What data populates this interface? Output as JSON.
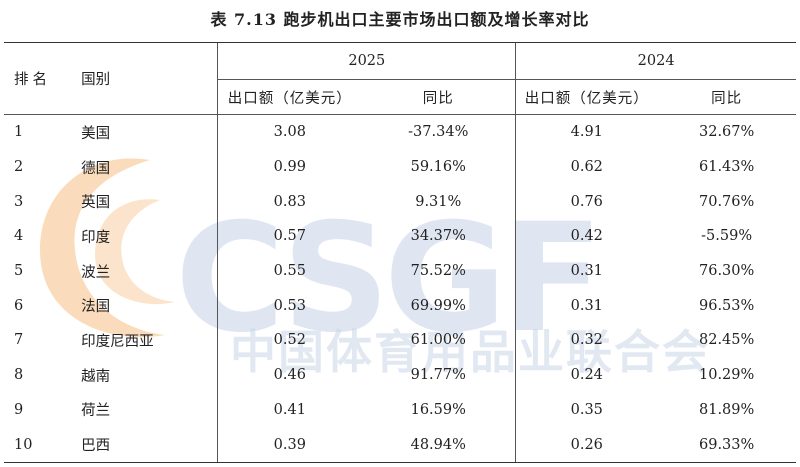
{
  "title": "表 7.13 跑步机出口主要市场出口额及增长率对比",
  "watermark": {
    "logo_text": "CSGF",
    "org_text": "中国体育用品业联合会"
  },
  "header": {
    "rank": "排名",
    "country": "国别",
    "year_a": "2025",
    "year_b": "2024",
    "amount": "出口额（亿美元）",
    "yoy": "同比"
  },
  "rows": [
    {
      "rank": "1",
      "country": "美国",
      "amt_2025": "3.08",
      "yoy_2025": "-37.34%",
      "amt_2024": "4.91",
      "yoy_2024": "32.67%"
    },
    {
      "rank": "2",
      "country": "德国",
      "amt_2025": "0.99",
      "yoy_2025": "59.16%",
      "amt_2024": "0.62",
      "yoy_2024": "61.43%"
    },
    {
      "rank": "3",
      "country": "英国",
      "amt_2025": "0.83",
      "yoy_2025": "9.31%",
      "amt_2024": "0.76",
      "yoy_2024": "70.76%"
    },
    {
      "rank": "4",
      "country": "印度",
      "amt_2025": "0.57",
      "yoy_2025": "34.37%",
      "amt_2024": "0.42",
      "yoy_2024": "-5.59%"
    },
    {
      "rank": "5",
      "country": "波兰",
      "amt_2025": "0.55",
      "yoy_2025": "75.52%",
      "amt_2024": "0.31",
      "yoy_2024": "76.30%"
    },
    {
      "rank": "6",
      "country": "法国",
      "amt_2025": "0.53",
      "yoy_2025": "69.99%",
      "amt_2024": "0.31",
      "yoy_2024": "96.53%"
    },
    {
      "rank": "7",
      "country": "印度尼西亚",
      "amt_2025": "0.52",
      "yoy_2025": "61.00%",
      "amt_2024": "0.32",
      "yoy_2024": "82.45%"
    },
    {
      "rank": "8",
      "country": "越南",
      "amt_2025": "0.46",
      "yoy_2025": "91.77%",
      "amt_2024": "0.24",
      "yoy_2024": "10.29%"
    },
    {
      "rank": "9",
      "country": "荷兰",
      "amt_2025": "0.41",
      "yoy_2025": "16.59%",
      "amt_2024": "0.35",
      "yoy_2024": "81.89%"
    },
    {
      "rank": "10",
      "country": "巴西",
      "amt_2025": "0.39",
      "yoy_2025": "48.94%",
      "amt_2024": "0.26",
      "yoy_2024": "69.33%"
    }
  ]
}
